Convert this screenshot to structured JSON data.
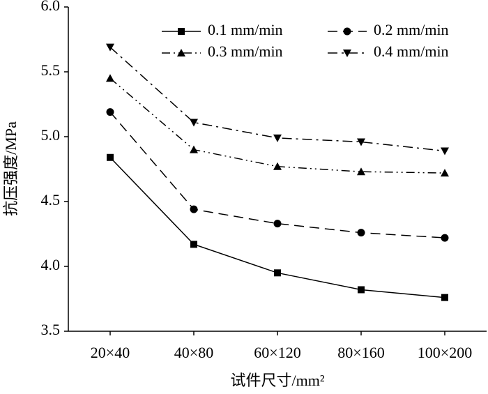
{
  "chart_data": {
    "type": "line",
    "x_label": "试件尺寸/mm²",
    "y_label": "抗压强度/MPa",
    "categories": [
      "20×40",
      "40×80",
      "60×120",
      "80×160",
      "100×200"
    ],
    "series": [
      {
        "name": "0.1 mm/min",
        "color": "#000000",
        "marker": "square",
        "line_style": "solid",
        "values": [
          4.84,
          4.17,
          3.95,
          3.82,
          3.76
        ]
      },
      {
        "name": "0.2 mm/min",
        "color": "#000000",
        "marker": "circle",
        "line_style": "dashed",
        "values": [
          5.19,
          4.44,
          4.33,
          4.26,
          4.22
        ]
      },
      {
        "name": "0.3 mm/min",
        "color": "#000000",
        "marker": "triangle-up",
        "line_style": "dashdotdot",
        "values": [
          5.45,
          4.9,
          4.77,
          4.73,
          4.72
        ]
      },
      {
        "name": "0.4 mm/min",
        "color": "#000000",
        "marker": "triangle-down",
        "line_style": "dashdot",
        "values": [
          5.69,
          5.11,
          4.99,
          4.96,
          4.89
        ]
      }
    ],
    "ylim": [
      3.5,
      6.0
    ],
    "yticks": [
      3.5,
      {
        "value": 4,
        "label": "4.0"
      },
      4.5,
      {
        "value": 5,
        "label": "5.0"
      },
      5.5,
      {
        "value": 6,
        "label": "6.0"
      }
    ],
    "legend": "upper right",
    "grid": false
  }
}
